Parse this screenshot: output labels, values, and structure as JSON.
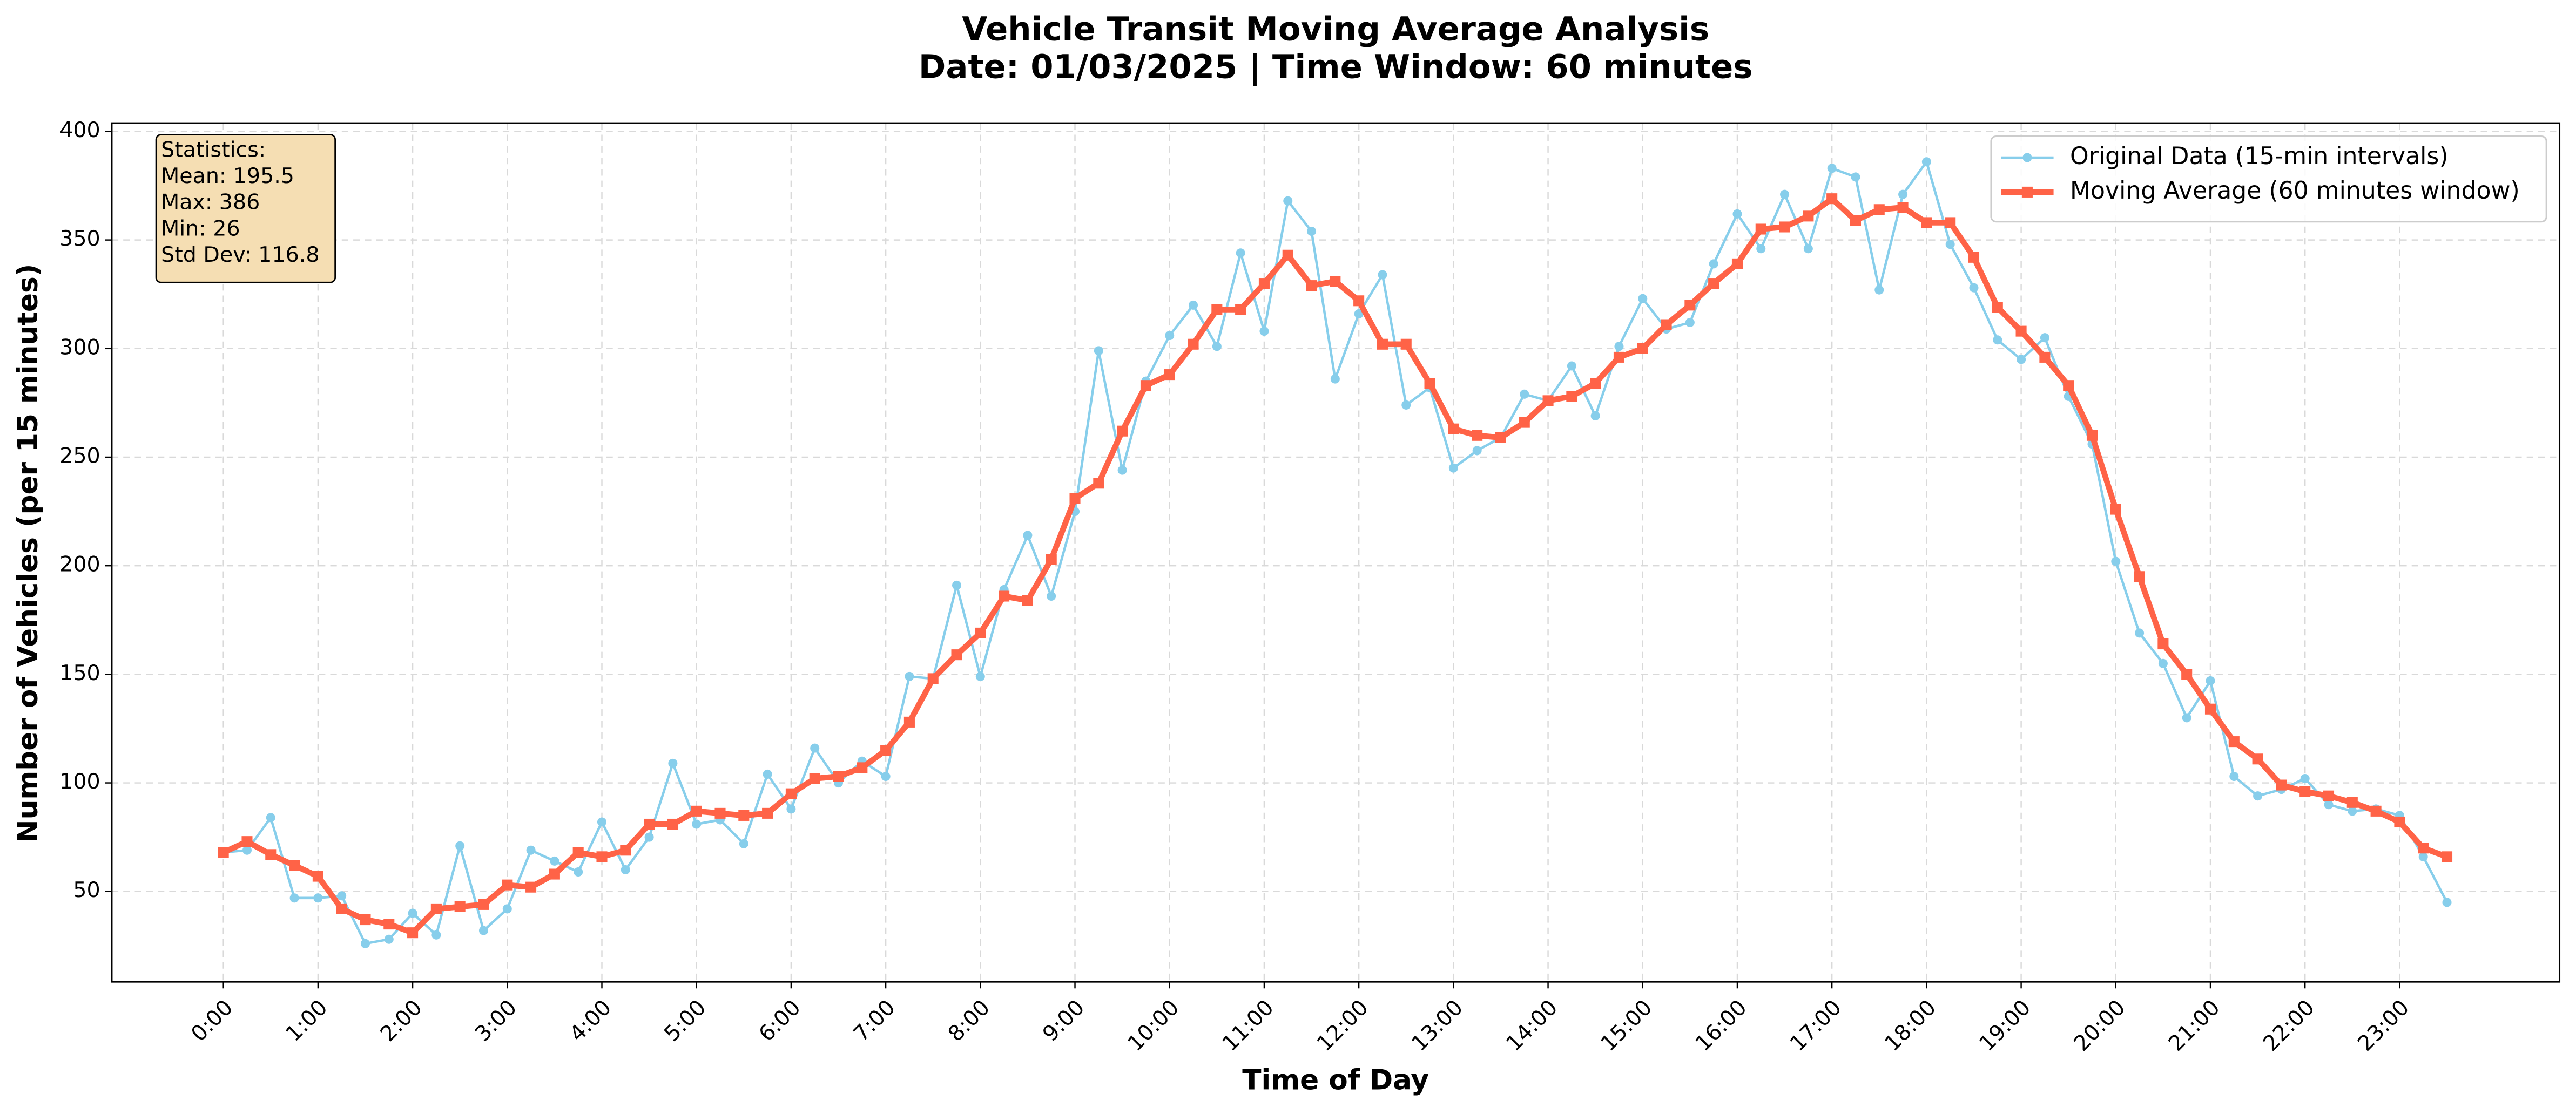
{
  "chart_data": {
    "type": "line",
    "title": "Vehicle Transit Moving Average Analysis",
    "subtitle": "Date: 01/03/2025 | Time Window: 60 minutes",
    "x_label": "Time of Day",
    "y_label": "Number of Vehicles (per 15 minutes)",
    "x": [
      0,
      0.25,
      0.5,
      0.75,
      1,
      1.25,
      1.5,
      1.75,
      2,
      2.25,
      2.5,
      2.75,
      3,
      3.25,
      3.5,
      3.75,
      4,
      4.25,
      4.5,
      4.75,
      5,
      5.25,
      5.5,
      5.75,
      6,
      6.25,
      6.5,
      6.75,
      7,
      7.25,
      7.5,
      7.75,
      8,
      8.25,
      8.5,
      8.75,
      9,
      9.25,
      9.5,
      9.75,
      10,
      10.25,
      10.5,
      10.75,
      11,
      11.25,
      11.5,
      11.75,
      12,
      12.25,
      12.5,
      12.75,
      13,
      13.25,
      13.5,
      13.75,
      14,
      14.25,
      14.5,
      14.75,
      15,
      15.25,
      15.5,
      15.75,
      16,
      16.25,
      16.5,
      16.75,
      17,
      17.25,
      17.5,
      17.75,
      18,
      18.25,
      18.5,
      18.75,
      19,
      19.25,
      19.5,
      19.75,
      20,
      20.25,
      20.5,
      20.75,
      21,
      21.25,
      21.5,
      21.75,
      22,
      22.25,
      22.5,
      22.75,
      23,
      23.25,
      23.5
    ],
    "series": [
      {
        "name": "Original Data (15-min intervals)",
        "color": "#87ceeb",
        "marker": "circle",
        "line_width": 1.5,
        "values": [
          68,
          69,
          84,
          47,
          47,
          48,
          26,
          28,
          40,
          30,
          71,
          32,
          42,
          69,
          64,
          59,
          82,
          60,
          75,
          109,
          81,
          83,
          72,
          104,
          88,
          116,
          100,
          110,
          103,
          149,
          148,
          191,
          149,
          189,
          214,
          186,
          225,
          299,
          244,
          285,
          306,
          320,
          301,
          344,
          308,
          368,
          354,
          286,
          316,
          334,
          274,
          282,
          245,
          253,
          259,
          279,
          276,
          292,
          269,
          301,
          323,
          309,
          312,
          339,
          362,
          346,
          371,
          346,
          383,
          379,
          327,
          371,
          386,
          348,
          328,
          304,
          295,
          305,
          278,
          256,
          202,
          169,
          155,
          130,
          147,
          103,
          94,
          97,
          102,
          90,
          87,
          88,
          85,
          66,
          45
        ]
      },
      {
        "name": "Moving Average (60 minutes window)",
        "color": "#ff6347",
        "marker": "square",
        "line_width": 3.5,
        "values": [
          68,
          73,
          67,
          62,
          57,
          42,
          37,
          35,
          31,
          42,
          43,
          44,
          53,
          52,
          58,
          68,
          66,
          69,
          81,
          81,
          87,
          86,
          85,
          86,
          95,
          102,
          103,
          107,
          115,
          128,
          148,
          159,
          169,
          186,
          184,
          203,
          231,
          238,
          262,
          283,
          288,
          302,
          318,
          318,
          330,
          343,
          329,
          331,
          322,
          302,
          302,
          284,
          263,
          260,
          259,
          266,
          276,
          278,
          284,
          296,
          300,
          311,
          320,
          330,
          339,
          355,
          356,
          361,
          369,
          359,
          364,
          365,
          358,
          358,
          342,
          319,
          308,
          296,
          283,
          260,
          226,
          195,
          164,
          150,
          134,
          119,
          111,
          99,
          96,
          94,
          91,
          87,
          82,
          70,
          66
        ]
      }
    ],
    "xlim": [
      -1.18,
      24.69
    ],
    "xticks": [
      {
        "value": 0,
        "label": "0:00"
      },
      {
        "value": 1,
        "label": "1:00"
      },
      {
        "value": 2,
        "label": "2:00"
      },
      {
        "value": 3,
        "label": "3:00"
      },
      {
        "value": 4,
        "label": "4:00"
      },
      {
        "value": 5,
        "label": "5:00"
      },
      {
        "value": 6,
        "label": "6:00"
      },
      {
        "value": 7,
        "label": "7:00"
      },
      {
        "value": 8,
        "label": "8:00"
      },
      {
        "value": 9,
        "label": "9:00"
      },
      {
        "value": 10,
        "label": "10:00"
      },
      {
        "value": 11,
        "label": "11:00"
      },
      {
        "value": 12,
        "label": "12:00"
      },
      {
        "value": 13,
        "label": "13:00"
      },
      {
        "value": 14,
        "label": "14:00"
      },
      {
        "value": 15,
        "label": "15:00"
      },
      {
        "value": 16,
        "label": "16:00"
      },
      {
        "value": 17,
        "label": "17:00"
      },
      {
        "value": 18,
        "label": "18:00"
      },
      {
        "value": 19,
        "label": "19:00"
      },
      {
        "value": 20,
        "label": "20:00"
      },
      {
        "value": 21,
        "label": "21:00"
      },
      {
        "value": 22,
        "label": "22:00"
      },
      {
        "value": 23,
        "label": "23:00"
      }
    ],
    "ylim": [
      8.4,
      403.8
    ],
    "yticks": [
      50,
      100,
      150,
      200,
      250,
      300,
      350,
      400
    ],
    "grid": true,
    "legend": "upper right",
    "stats_box": {
      "color": "#f5deb3",
      "lines": [
        "Statistics:",
        "Mean: 195.5",
        "Max: 386",
        "Min: 26",
        "Std Dev: 116.8"
      ]
    }
  }
}
